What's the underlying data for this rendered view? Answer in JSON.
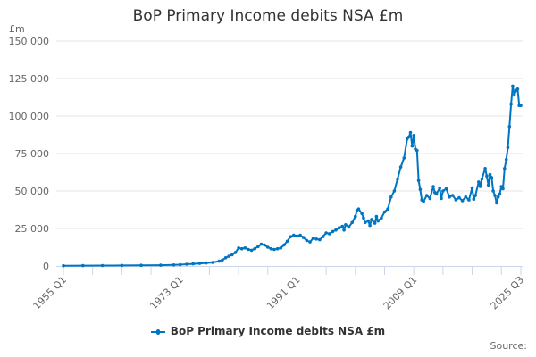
{
  "title": "BoP Primary Income debits NSA £m",
  "y_unit": "£m",
  "legend_label": "BoP Primary Income debits NSA £m",
  "source_label": "Source:",
  "colors": {
    "line": "#0075c2",
    "grid": "#e6e6e6",
    "axis": "#ccd6eb",
    "text": "#666666"
  },
  "chart_data": {
    "type": "line",
    "title": "BoP Primary Income debits NSA £m",
    "xlabel": "",
    "ylabel": "£m",
    "ylim": [
      0,
      150000
    ],
    "yticks": [
      0,
      25000,
      50000,
      75000,
      100000,
      125000,
      150000
    ],
    "ytick_labels": [
      "0",
      "25 000",
      "50 000",
      "75 000",
      "100 000",
      "125 000",
      "150 000"
    ],
    "xtick_labels": [
      "1955 Q1",
      "1973 Q1",
      "1991 Q1",
      "2009 Q1",
      "2025 Q3"
    ],
    "grid": true,
    "legend_position": "bottom",
    "series": [
      {
        "name": "BoP Primary Income debits NSA £m",
        "points": [
          [
            "1955 Q1",
            200
          ],
          [
            "1958 Q1",
            250
          ],
          [
            "1961 Q1",
            300
          ],
          [
            "1964 Q1",
            350
          ],
          [
            "1967 Q1",
            450
          ],
          [
            "1970 Q1",
            550
          ],
          [
            "1972 Q1",
            700
          ],
          [
            "1973 Q1",
            900
          ],
          [
            "1974 Q1",
            1200
          ],
          [
            "1975 Q1",
            1400
          ],
          [
            "1976 Q1",
            1700
          ],
          [
            "1977 Q1",
            2000
          ],
          [
            "1978 Q1",
            2400
          ],
          [
            "1979 Q1",
            3200
          ],
          [
            "1979 Q3",
            4000
          ],
          [
            "1980 Q1",
            5500
          ],
          [
            "1980 Q3",
            6500
          ],
          [
            "1981 Q1",
            7500
          ],
          [
            "1981 Q3",
            9000
          ],
          [
            "1982 Q1",
            12000
          ],
          [
            "1982 Q3",
            11500
          ],
          [
            "1983 Q1",
            12000
          ],
          [
            "1983 Q3",
            11000
          ],
          [
            "1984 Q1",
            10500
          ],
          [
            "1984 Q3",
            11500
          ],
          [
            "1985 Q1",
            13000
          ],
          [
            "1985 Q3",
            14500
          ],
          [
            "1986 Q1",
            14000
          ],
          [
            "1986 Q3",
            12500
          ],
          [
            "1987 Q1",
            11500
          ],
          [
            "1987 Q3",
            11000
          ],
          [
            "1988 Q1",
            11500
          ],
          [
            "1988 Q3",
            12000
          ],
          [
            "1989 Q1",
            14000
          ],
          [
            "1989 Q3",
            16500
          ],
          [
            "1990 Q1",
            19500
          ],
          [
            "1990 Q3",
            20500
          ],
          [
            "1991 Q1",
            20000
          ],
          [
            "1991 Q3",
            20500
          ],
          [
            "1992 Q1",
            19000
          ],
          [
            "1992 Q3",
            17000
          ],
          [
            "1993 Q1",
            16000
          ],
          [
            "1993 Q3",
            18500
          ],
          [
            "1994 Q1",
            18000
          ],
          [
            "1994 Q3",
            17500
          ],
          [
            "1995 Q1",
            19500
          ],
          [
            "1995 Q3",
            22000
          ],
          [
            "1996 Q1",
            21500
          ],
          [
            "1996 Q3",
            23000
          ],
          [
            "1997 Q1",
            24000
          ],
          [
            "1997 Q3",
            25500
          ],
          [
            "1998 Q1",
            26500
          ],
          [
            "1998 Q2",
            24000
          ],
          [
            "1998 Q3",
            27500
          ],
          [
            "1999 Q1",
            26000
          ],
          [
            "1999 Q3",
            29000
          ],
          [
            "2000 Q1",
            33000
          ],
          [
            "2000 Q2",
            37000
          ],
          [
            "2000 Q3",
            38000
          ],
          [
            "2001 Q1",
            35000
          ],
          [
            "2001 Q2",
            32000
          ],
          [
            "2001 Q3",
            29000
          ],
          [
            "2002 Q1",
            30000
          ],
          [
            "2002 Q2",
            27000
          ],
          [
            "2002 Q3",
            31000
          ],
          [
            "2003 Q1",
            28500
          ],
          [
            "2003 Q2",
            33000
          ],
          [
            "2003 Q3",
            30000
          ],
          [
            "2004 Q1",
            32000
          ],
          [
            "2004 Q3",
            36000
          ],
          [
            "2005 Q1",
            38000
          ],
          [
            "2005 Q3",
            46000
          ],
          [
            "2006 Q1",
            50000
          ],
          [
            "2006 Q3",
            58000
          ],
          [
            "2007 Q1",
            66000
          ],
          [
            "2007 Q3",
            72000
          ],
          [
            "2008 Q1",
            85000
          ],
          [
            "2008 Q2",
            86000
          ],
          [
            "2008 Q3",
            89000
          ],
          [
            "2008 Q4",
            80000
          ],
          [
            "2009 Q1",
            87000
          ],
          [
            "2009 Q2",
            78000
          ],
          [
            "2009 Q3",
            77000
          ],
          [
            "2009 Q4",
            57000
          ],
          [
            "2010 Q1",
            51000
          ],
          [
            "2010 Q2",
            44000
          ],
          [
            "2010 Q3",
            43000
          ],
          [
            "2011 Q1",
            47000
          ],
          [
            "2011 Q3",
            45000
          ],
          [
            "2012 Q1",
            53000
          ],
          [
            "2012 Q2",
            49000
          ],
          [
            "2012 Q3",
            48000
          ],
          [
            "2013 Q1",
            52000
          ],
          [
            "2013 Q2",
            45000
          ],
          [
            "2013 Q3",
            50000
          ],
          [
            "2014 Q1",
            51500
          ],
          [
            "2014 Q3",
            46000
          ],
          [
            "2015 Q1",
            47000
          ],
          [
            "2015 Q3",
            44000
          ],
          [
            "2016 Q1",
            45500
          ],
          [
            "2016 Q3",
            43500
          ],
          [
            "2017 Q1",
            46000
          ],
          [
            "2017 Q3",
            44000
          ],
          [
            "2018 Q1",
            52000
          ],
          [
            "2018 Q2",
            44500
          ],
          [
            "2018 Q3",
            47000
          ],
          [
            "2019 Q1",
            56000
          ],
          [
            "2019 Q2",
            53000
          ],
          [
            "2019 Q3",
            58000
          ],
          [
            "2020 Q1",
            65000
          ],
          [
            "2020 Q2",
            60000
          ],
          [
            "2020 Q3",
            54000
          ],
          [
            "2020 Q4",
            61000
          ],
          [
            "2021 Q1",
            59000
          ],
          [
            "2021 Q2",
            50000
          ],
          [
            "2021 Q3",
            47000
          ],
          [
            "2021 Q4",
            42000
          ],
          [
            "2022 Q1",
            46000
          ],
          [
            "2022 Q2",
            48000
          ],
          [
            "2022 Q3",
            53000
          ],
          [
            "2022 Q4",
            51500
          ],
          [
            "2023 Q1",
            65000
          ],
          [
            "2023 Q2",
            71000
          ],
          [
            "2023 Q3",
            79000
          ],
          [
            "2023 Q4",
            93000
          ],
          [
            "2024 Q1",
            108000
          ],
          [
            "2024 Q2",
            120000
          ],
          [
            "2024 Q3",
            114000
          ],
          [
            "2024 Q4",
            117000
          ],
          [
            "2025 Q1",
            118000
          ],
          [
            "2025 Q2",
            107000
          ],
          [
            "2025 Q3",
            107000
          ]
        ]
      }
    ]
  }
}
